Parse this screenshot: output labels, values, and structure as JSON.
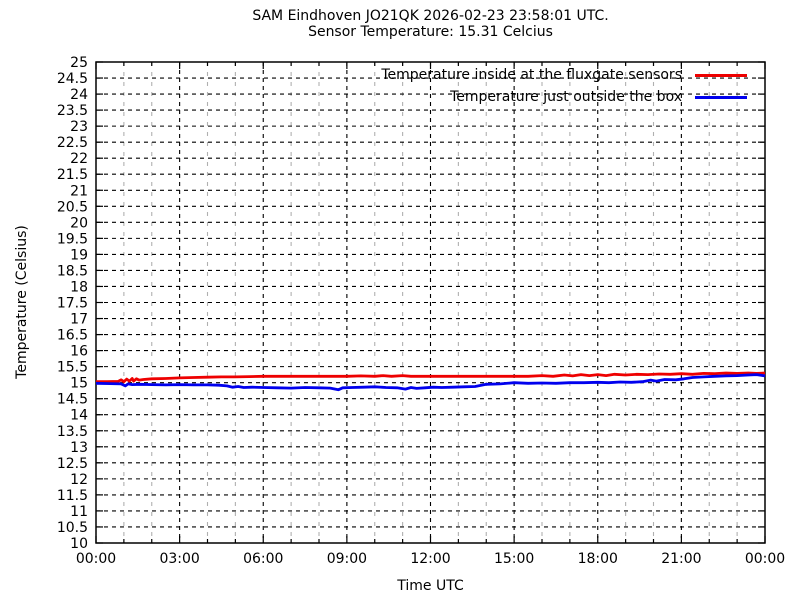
{
  "chart_data": {
    "type": "line",
    "title": "SAM Eindhoven JO21QK 2026-02-23 23:58:01 UTC.",
    "subtitle": "Sensor Temperature: 15.31 Celcius",
    "xlabel": "Time UTC",
    "ylabel": "Temperature (Celsius)",
    "ylim": [
      10,
      25
    ],
    "ytick_step": 0.5,
    "xlim_hours": [
      0,
      24
    ],
    "xtick_hours": [
      0,
      3,
      6,
      9,
      12,
      15,
      18,
      21,
      24
    ],
    "xtick_labels": [
      "00:00",
      "03:00",
      "06:00",
      "09:00",
      "12:00",
      "15:00",
      "18:00",
      "21:00",
      "00:00"
    ],
    "minor_xtick_every_hours": 1,
    "grid": {
      "on": true,
      "major_color": "#000000",
      "minor_color": "#b0b0b0"
    },
    "legend_position": "top-right-inside",
    "series": [
      {
        "name": "Temperature inside at the fluxgate sensors",
        "color": "#ee0000",
        "points": [
          [
            0,
            15.03
          ],
          [
            0.4,
            15.03
          ],
          [
            0.8,
            15.04
          ],
          [
            0.9,
            15.09
          ],
          [
            1.0,
            15.03
          ],
          [
            1.1,
            15.11
          ],
          [
            1.2,
            15.05
          ],
          [
            1.3,
            15.13
          ],
          [
            1.35,
            15.05
          ],
          [
            1.45,
            15.12
          ],
          [
            1.55,
            15.08
          ],
          [
            1.7,
            15.1
          ],
          [
            2,
            15.12
          ],
          [
            2.5,
            15.13
          ],
          [
            3,
            15.15
          ],
          [
            3.5,
            15.16
          ],
          [
            4,
            15.17
          ],
          [
            4.5,
            15.18
          ],
          [
            5,
            15.18
          ],
          [
            5.5,
            15.19
          ],
          [
            6,
            15.2
          ],
          [
            7,
            15.2
          ],
          [
            8,
            15.2
          ],
          [
            9,
            15.2
          ],
          [
            9.5,
            15.21
          ],
          [
            10,
            15.2
          ],
          [
            10.3,
            15.22
          ],
          [
            10.6,
            15.2
          ],
          [
            11,
            15.22
          ],
          [
            11.3,
            15.2
          ],
          [
            12,
            15.2
          ],
          [
            13,
            15.2
          ],
          [
            14,
            15.2
          ],
          [
            15,
            15.2
          ],
          [
            15.5,
            15.2
          ],
          [
            16,
            15.22
          ],
          [
            16.4,
            15.2
          ],
          [
            16.8,
            15.24
          ],
          [
            17.1,
            15.21
          ],
          [
            17.4,
            15.25
          ],
          [
            17.7,
            15.22
          ],
          [
            18,
            15.25
          ],
          [
            18.3,
            15.22
          ],
          [
            18.6,
            15.26
          ],
          [
            19,
            15.24
          ],
          [
            19.4,
            15.26
          ],
          [
            19.8,
            15.25
          ],
          [
            20.2,
            15.27
          ],
          [
            20.6,
            15.26
          ],
          [
            21,
            15.28
          ],
          [
            21.4,
            15.26
          ],
          [
            21.8,
            15.29
          ],
          [
            22.2,
            15.28
          ],
          [
            22.6,
            15.3
          ],
          [
            23,
            15.29
          ],
          [
            23.4,
            15.3
          ],
          [
            23.7,
            15.29
          ],
          [
            24,
            15.3
          ]
        ]
      },
      {
        "name": "Temperature just outside the box",
        "color": "#0000ee",
        "points": [
          [
            0,
            14.98
          ],
          [
            0.5,
            14.97
          ],
          [
            0.9,
            14.96
          ],
          [
            1.05,
            14.9
          ],
          [
            1.15,
            14.96
          ],
          [
            1.3,
            14.94
          ],
          [
            1.6,
            14.95
          ],
          [
            2,
            14.94
          ],
          [
            2.5,
            14.93
          ],
          [
            3,
            14.94
          ],
          [
            3.5,
            14.93
          ],
          [
            4,
            14.93
          ],
          [
            4.4,
            14.92
          ],
          [
            4.7,
            14.9
          ],
          [
            4.9,
            14.86
          ],
          [
            5.1,
            14.88
          ],
          [
            5.3,
            14.85
          ],
          [
            5.6,
            14.86
          ],
          [
            6,
            14.85
          ],
          [
            6.5,
            14.84
          ],
          [
            7,
            14.83
          ],
          [
            7.5,
            14.85
          ],
          [
            8,
            14.84
          ],
          [
            8.4,
            14.83
          ],
          [
            8.7,
            14.78
          ],
          [
            8.85,
            14.84
          ],
          [
            9.2,
            14.85
          ],
          [
            9.6,
            14.86
          ],
          [
            10,
            14.87
          ],
          [
            10.4,
            14.85
          ],
          [
            10.8,
            14.84
          ],
          [
            11.1,
            14.8
          ],
          [
            11.3,
            14.85
          ],
          [
            11.5,
            14.82
          ],
          [
            11.8,
            14.84
          ],
          [
            12.1,
            14.86
          ],
          [
            12.4,
            14.85
          ],
          [
            12.8,
            14.86
          ],
          [
            13.2,
            14.87
          ],
          [
            13.6,
            14.88
          ],
          [
            14,
            14.95
          ],
          [
            14.5,
            14.96
          ],
          [
            15,
            15.0
          ],
          [
            15.5,
            14.98
          ],
          [
            16,
            14.99
          ],
          [
            16.5,
            14.98
          ],
          [
            17,
            15.0
          ],
          [
            17.5,
            15.0
          ],
          [
            18,
            15.01
          ],
          [
            18.4,
            15.0
          ],
          [
            18.8,
            15.02
          ],
          [
            19.2,
            15.01
          ],
          [
            19.6,
            15.03
          ],
          [
            19.9,
            15.08
          ],
          [
            20.1,
            15.05
          ],
          [
            20.4,
            15.1
          ],
          [
            20.8,
            15.09
          ],
          [
            21.1,
            15.12
          ],
          [
            21.4,
            15.16
          ],
          [
            21.8,
            15.18
          ],
          [
            22.2,
            15.2
          ],
          [
            22.6,
            15.21
          ],
          [
            23,
            15.22
          ],
          [
            23.4,
            15.24
          ],
          [
            23.7,
            15.25
          ],
          [
            24,
            15.21
          ]
        ]
      }
    ]
  }
}
